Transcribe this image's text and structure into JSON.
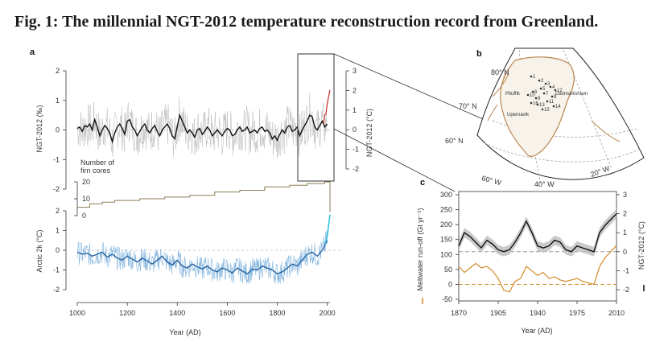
{
  "figure": {
    "title": "Fig. 1: The millennial NGT-2012 temperature reconstruction record from Greenland."
  },
  "chart_data": [
    {
      "panel": "a",
      "type": "line",
      "title": "",
      "xlabel": "Year (AD)",
      "x_range": [
        1000,
        2011
      ],
      "x_ticks": [
        1000,
        1200,
        1400,
        1600,
        1800,
        2000
      ],
      "upper": {
        "ylabel_left": "NGT-2012 (‰)",
        "ylabel_right": "NGT-2012 (°C)",
        "y_ticks_left": [
          -2,
          -1,
          0,
          1,
          2
        ],
        "y_ticks_right": [
          -2,
          -1,
          0,
          1,
          2,
          3
        ],
        "series_smoothed_x": [
          1000,
          1010,
          1020,
          1030,
          1040,
          1050,
          1060,
          1070,
          1080,
          1090,
          1100,
          1110,
          1120,
          1130,
          1140,
          1150,
          1160,
          1170,
          1180,
          1190,
          1200,
          1210,
          1220,
          1230,
          1240,
          1250,
          1260,
          1270,
          1280,
          1290,
          1300,
          1310,
          1320,
          1330,
          1340,
          1350,
          1360,
          1370,
          1380,
          1390,
          1400,
          1410,
          1420,
          1430,
          1440,
          1450,
          1460,
          1470,
          1480,
          1490,
          1500,
          1510,
          1520,
          1530,
          1540,
          1550,
          1560,
          1570,
          1580,
          1590,
          1600,
          1610,
          1620,
          1630,
          1640,
          1650,
          1660,
          1670,
          1680,
          1690,
          1700,
          1710,
          1720,
          1730,
          1740,
          1750,
          1760,
          1770,
          1780,
          1790,
          1800,
          1810,
          1820,
          1830,
          1840,
          1850,
          1860,
          1870,
          1880,
          1890,
          1900,
          1910,
          1920,
          1930,
          1940,
          1950,
          1960,
          1970,
          1980,
          1990,
          2000
        ],
        "series_smoothed_y": [
          0.05,
          0.1,
          -0.05,
          0.15,
          0.1,
          0.2,
          0.0,
          0.35,
          0.1,
          -0.2,
          0.0,
          0.15,
          0.05,
          -0.1,
          -0.4,
          -0.1,
          0.1,
          0.2,
          0.05,
          -0.15,
          0.3,
          0.35,
          0.1,
          0.0,
          -0.2,
          -0.05,
          0.1,
          0.2,
          0.0,
          -0.1,
          0.05,
          0.15,
          -0.05,
          -0.2,
          0.0,
          0.1,
          0.2,
          0.05,
          -0.2,
          -0.3,
          0.1,
          0.5,
          0.3,
          0.1,
          -0.1,
          0.0,
          -0.1,
          -0.25,
          0.0,
          0.05,
          -0.15,
          -0.05,
          0.1,
          0.0,
          -0.2,
          -0.1,
          0.0,
          -0.1,
          -0.2,
          -0.05,
          0.05,
          0.0,
          -0.2,
          -0.15,
          0.0,
          0.1,
          -0.05,
          0.0,
          0.1,
          -0.1,
          -0.05,
          0.0,
          -0.1,
          0.05,
          0.1,
          -0.05,
          0.0,
          -0.1,
          -0.3,
          -0.2,
          -0.35,
          -0.15,
          0.0,
          -0.1,
          0.1,
          0.15,
          -0.05,
          0.0,
          0.1,
          -0.2,
          0.0,
          0.15,
          0.3,
          0.5,
          0.45,
          0.1,
          0.0,
          0.15,
          0.3,
          0.1,
          0.2
        ],
        "series_red_x": [
          1985,
          1990,
          1995,
          2000,
          2005,
          2011
        ],
        "series_red_y": [
          0.2,
          0.5,
          0.55,
          0.9,
          1.1,
          1.35
        ]
      },
      "firn_cores": {
        "label_line1": "Number of",
        "label_line2": "firn cores",
        "y_ticks": [
          0,
          10,
          20
        ],
        "x": [
          1000,
          1050,
          1100,
          1150,
          1250,
          1350,
          1450,
          1550,
          1650,
          1750,
          1850,
          1920,
          1990,
          2011
        ],
        "y": [
          5,
          7,
          8,
          9,
          10,
          11,
          12,
          14,
          15,
          17,
          18,
          19,
          20,
          2
        ]
      },
      "lower": {
        "ylabel": "Arctic 2k (°C)",
        "y_ticks": [
          -2,
          -1,
          0,
          1,
          2
        ],
        "series_smoothed_x": [
          1000,
          1020,
          1040,
          1060,
          1080,
          1100,
          1120,
          1140,
          1160,
          1180,
          1200,
          1220,
          1240,
          1260,
          1280,
          1300,
          1320,
          1340,
          1360,
          1380,
          1400,
          1420,
          1440,
          1460,
          1480,
          1500,
          1520,
          1540,
          1560,
          1580,
          1600,
          1620,
          1640,
          1660,
          1680,
          1700,
          1720,
          1740,
          1760,
          1780,
          1800,
          1820,
          1840,
          1860,
          1880,
          1900,
          1920,
          1940,
          1960,
          1980,
          2000
        ],
        "series_smoothed_y": [
          -0.1,
          -0.2,
          -0.15,
          -0.3,
          -0.2,
          -0.1,
          -0.35,
          -0.2,
          -0.4,
          -0.5,
          -0.3,
          -0.45,
          -0.6,
          -0.4,
          -0.55,
          -0.7,
          -0.5,
          -0.3,
          -0.6,
          -0.75,
          -0.5,
          -0.8,
          -0.9,
          -0.7,
          -0.85,
          -0.95,
          -0.8,
          -1.0,
          -1.1,
          -0.9,
          -1.0,
          -1.15,
          -0.9,
          -1.05,
          -1.2,
          -0.95,
          -1.0,
          -0.8,
          -0.9,
          -1.0,
          -1.2,
          -1.1,
          -0.9,
          -0.7,
          -0.8,
          -0.5,
          -0.2,
          -0.1,
          -0.3,
          0.0,
          0.5
        ],
        "series_cyan_x": [
          1990,
          2000,
          2005,
          2011
        ],
        "series_cyan_y": [
          0.3,
          0.7,
          1.2,
          1.8
        ]
      },
      "colors": {
        "ngt": "#111111",
        "ngt_raw": "#b5b5b5",
        "red": "#cc2a2a",
        "firn": "#8a7d55",
        "arctic": "#1f5d9e",
        "arctic_raw": "#7fb2dd",
        "cyan": "#35c3de"
      }
    },
    {
      "panel": "b",
      "type": "map",
      "labels": {
        "lat": [
          "80° N",
          "70° N",
          "60° N"
        ],
        "lon": [
          "60° W",
          "40° W",
          "20° W"
        ],
        "sites": [
          "Pituffik",
          "Danmarkshavn",
          "Upernavik"
        ]
      },
      "site_numbers": [
        "1",
        "2",
        "3",
        "4",
        "5",
        "6",
        "7",
        "8",
        "9",
        "10",
        "11",
        "12",
        "13",
        "14",
        "15",
        "16"
      ]
    },
    {
      "panel": "c",
      "type": "line",
      "xlabel": "Year (AD)",
      "ylabel_left": "Meltwater run-off (Gt yr⁻¹)",
      "ylabel_right": "NGT-2012 (°C)",
      "x_ticks": [
        1870,
        1905,
        1940,
        1975,
        2010
      ],
      "y_ticks_left": [
        -50,
        0,
        50,
        100,
        150,
        200,
        250,
        300
      ],
      "y_ticks_right": [
        -2,
        -1,
        0,
        1,
        2,
        3
      ],
      "runoff_x": [
        1870,
        1875,
        1880,
        1885,
        1890,
        1895,
        1900,
        1905,
        1910,
        1915,
        1920,
        1925,
        1930,
        1935,
        1940,
        1945,
        1950,
        1955,
        1960,
        1965,
        1970,
        1975,
        1980,
        1985,
        1990,
        1995,
        2000,
        2005,
        2010
      ],
      "runoff_y": [
        60,
        40,
        55,
        70,
        55,
        60,
        45,
        20,
        -20,
        -25,
        10,
        20,
        60,
        45,
        30,
        40,
        20,
        25,
        15,
        10,
        15,
        20,
        10,
        5,
        0,
        60,
        90,
        110,
        130
      ],
      "ngt_x": [
        1870,
        1875,
        1880,
        1885,
        1890,
        1895,
        1900,
        1905,
        1910,
        1915,
        1920,
        1925,
        1930,
        1935,
        1940,
        1945,
        1950,
        1955,
        1960,
        1965,
        1970,
        1975,
        1980,
        1985,
        1990,
        1995,
        2000,
        2005,
        2010
      ],
      "ngt_y": [
        0.3,
        1.0,
        0.8,
        0.5,
        0.2,
        0.6,
        0.4,
        0.1,
        0.0,
        0.1,
        0.5,
        1.0,
        1.6,
        1.0,
        0.3,
        0.2,
        0.3,
        0.6,
        0.5,
        0.1,
        0.0,
        0.3,
        0.2,
        0.1,
        0.0,
        1.0,
        1.4,
        1.7,
        2.0
      ],
      "colors": {
        "runoff": "#d38a2a",
        "ngt": "#111111",
        "band": "#bdbdbd"
      }
    }
  ],
  "axis_units": {
    "ad_small": "AD"
  }
}
